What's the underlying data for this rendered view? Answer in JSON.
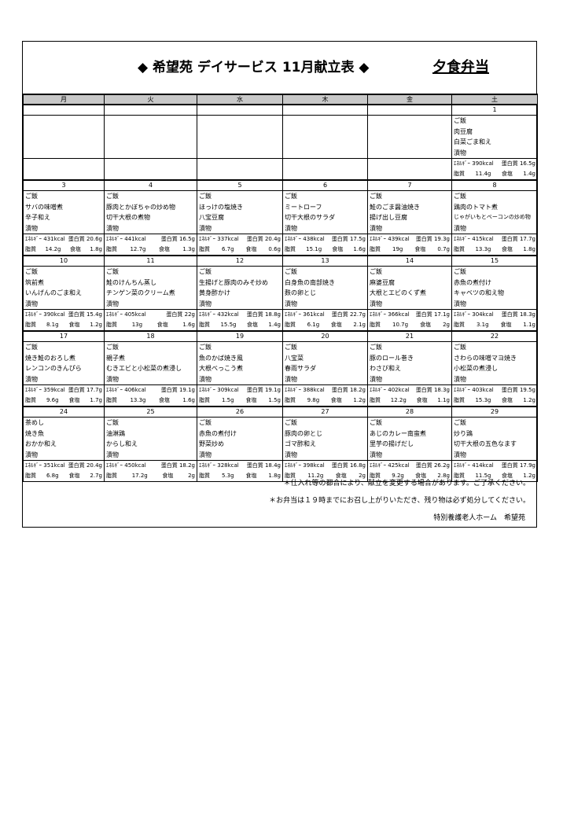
{
  "header": {
    "title": "◆ 希望苑 デイサービス 11月献立表 ◆",
    "subtitle": "夕食弁当"
  },
  "weekdays": [
    "月",
    "火",
    "水",
    "木",
    "金",
    "土"
  ],
  "labels": {
    "energy": "ｴﾈﾙｷﾞｰ",
    "protein": "蛋白質",
    "fat": "脂質",
    "salt": "食塩"
  },
  "weeks": [
    [
      null,
      null,
      null,
      null,
      null,
      {
        "date": "1",
        "menu": [
          "ご飯",
          "肉豆腐",
          "白菜ごま和え",
          "漬物"
        ],
        "energy": "390kcal",
        "protein": "16.5g",
        "fat": "11.4g",
        "salt": "1.4g"
      }
    ],
    [
      {
        "date": "3",
        "menu": [
          "ご飯",
          "サバの味噌煮",
          "辛子和え",
          "漬物"
        ],
        "energy": "431kcal",
        "protein": "20.6g",
        "fat": "14.2g",
        "salt": "1.8g"
      },
      {
        "date": "4",
        "menu": [
          "ご飯",
          "豚肉とかぼちゃの炒め物",
          "切干大根の煮物",
          "漬物"
        ],
        "energy": "441kcal",
        "protein": "16.5g",
        "fat": "12.7g",
        "salt": "1.3g"
      },
      {
        "date": "5",
        "menu": [
          "ご飯",
          "ほっけの塩焼き",
          "八宝豆腐",
          "漬物"
        ],
        "energy": "337kcal",
        "protein": "20.4g",
        "fat": "6.7g",
        "salt": "0.6g"
      },
      {
        "date": "6",
        "menu": [
          "ご飯",
          "ミートローフ",
          "切干大根のサラダ",
          "漬物"
        ],
        "energy": "438kcal",
        "protein": "17.5g",
        "fat": "15.1g",
        "salt": "1.6g"
      },
      {
        "date": "7",
        "menu": [
          "ご飯",
          "鮭のごま醤油焼き",
          "揚げ出し豆腐",
          "漬物"
        ],
        "energy": "439kcal",
        "protein": "19.3g",
        "fat": "19g",
        "salt": "0.7g"
      },
      {
        "date": "8",
        "menu": [
          "ご飯",
          "鶏肉のトマト煮",
          "じゃがいもとベーコンの炒め物",
          "漬物"
        ],
        "energy": "415kcal",
        "protein": "17.7g",
        "fat": "13.3g",
        "salt": "1.8g"
      }
    ],
    [
      {
        "date": "10",
        "menu": [
          "ご飯",
          "筑前煮",
          "いんげんのごま和え",
          "漬物"
        ],
        "energy": "390kcal",
        "protein": "15.4g",
        "fat": "8.1g",
        "salt": "1.2g"
      },
      {
        "date": "11",
        "menu": [
          "ご飯",
          "鮭のけんちん蒸し",
          "チンゲン菜のクリーム煮",
          "漬物"
        ],
        "energy": "405kcal",
        "protein": "22g",
        "fat": "13g",
        "salt": "1.6g"
      },
      {
        "date": "12",
        "menu": [
          "ご飯",
          "生揚げと豚肉のみそ炒め",
          "黄身酢かけ",
          "漬物"
        ],
        "energy": "432kcal",
        "protein": "18.8g",
        "fat": "15.5g",
        "salt": "1.4g"
      },
      {
        "date": "13",
        "menu": [
          "ご飯",
          "白身魚の南部焼き",
          "麩の卵とじ",
          "漬物"
        ],
        "energy": "361kcal",
        "protein": "22.7g",
        "fat": "6.1g",
        "salt": "2.1g"
      },
      {
        "date": "14",
        "menu": [
          "ご飯",
          "麻婆豆腐",
          "大根とエビのくず煮",
          "漬物"
        ],
        "energy": "366kcal",
        "protein": "17.1g",
        "fat": "10.7g",
        "salt": "2g"
      },
      {
        "date": "15",
        "menu": [
          "ご飯",
          "赤魚の煮付け",
          "キャベツの和え物",
          "漬物"
        ],
        "energy": "304kcal",
        "protein": "18.3g",
        "fat": "3.1g",
        "salt": "1.1g"
      }
    ],
    [
      {
        "date": "17",
        "menu": [
          "ご飯",
          "焼き鮭のおろし煮",
          "レンコンのきんぴら",
          "漬物"
        ],
        "energy": "359kcal",
        "protein": "17.7g",
        "fat": "9.6g",
        "salt": "1.7g"
      },
      {
        "date": "18",
        "menu": [
          "ご飯",
          "親子煮",
          "むきエビと小松菜の煮浸し",
          "漬物"
        ],
        "energy": "406kcal",
        "protein": "19.1g",
        "fat": "13.3g",
        "salt": "1.6g"
      },
      {
        "date": "19",
        "menu": [
          "ご飯",
          "魚のかば焼き風",
          "大根べっこう煮",
          "漬物"
        ],
        "energy": "309kcal",
        "protein": "19.1g",
        "fat": "1.5g",
        "salt": "1.5g"
      },
      {
        "date": "20",
        "menu": [
          "ご飯",
          "八宝菜",
          "春雨サラダ",
          "漬物"
        ],
        "energy": "388kcal",
        "protein": "18.2g",
        "fat": "9.8g",
        "salt": "1.2g"
      },
      {
        "date": "21",
        "menu": [
          "ご飯",
          "豚のロール巻き",
          "わさび和え",
          "漬物"
        ],
        "energy": "402kcal",
        "protein": "18.3g",
        "fat": "12.2g",
        "salt": "1.1g"
      },
      {
        "date": "22",
        "menu": [
          "ご飯",
          "さわらの味噌マヨ焼き",
          "小松菜の煮浸し",
          "漬物"
        ],
        "energy": "403kcal",
        "protein": "19.5g",
        "fat": "15.3g",
        "salt": "1.2g"
      }
    ],
    [
      {
        "date": "24",
        "menu": [
          "茶めし",
          "焼き魚",
          "おかか和え",
          "漬物"
        ],
        "energy": "351kcal",
        "protein": "20.4g",
        "fat": "6.8g",
        "salt": "2.7g"
      },
      {
        "date": "25",
        "menu": [
          "ご飯",
          "油淋鶏",
          "からし和え",
          "漬物"
        ],
        "energy": "450kcal",
        "protein": "18.2g",
        "fat": "17.2g",
        "salt": "2g"
      },
      {
        "date": "26",
        "menu": [
          "ご飯",
          "赤魚の煮付け",
          "野菜炒め",
          "漬物"
        ],
        "energy": "328kcal",
        "protein": "18.4g",
        "fat": "5.3g",
        "salt": "1.8g"
      },
      {
        "date": "27",
        "menu": [
          "ご飯",
          "豚肉の卵とじ",
          "ゴマ酢和え",
          "漬物"
        ],
        "energy": "398kcal",
        "protein": "16.8g",
        "fat": "11.2g",
        "salt": "2g"
      },
      {
        "date": "28",
        "menu": [
          "ご飯",
          "あじのカレー南蛮煮",
          "里芋の揚げだし",
          "漬物"
        ],
        "energy": "425kcal",
        "protein": "26.2g",
        "fat": "9.2g",
        "salt": "2.8g"
      },
      {
        "date": "29",
        "menu": [
          "ご飯",
          "炒り鶏",
          "切干大根の五色なます",
          "漬物"
        ],
        "energy": "414kcal",
        "protein": "17.9g",
        "fat": "11.5g",
        "salt": "1.2g"
      }
    ]
  ],
  "footer": {
    "notes": [
      "＊仕入れ等の都合により、献立を変更する場合があります。ご了承ください。",
      "＊お弁当は１９時までにお召し上がりいただき、残り物は必ず処分してください。"
    ],
    "organization": "特別養護老人ホーム　希望苑"
  }
}
